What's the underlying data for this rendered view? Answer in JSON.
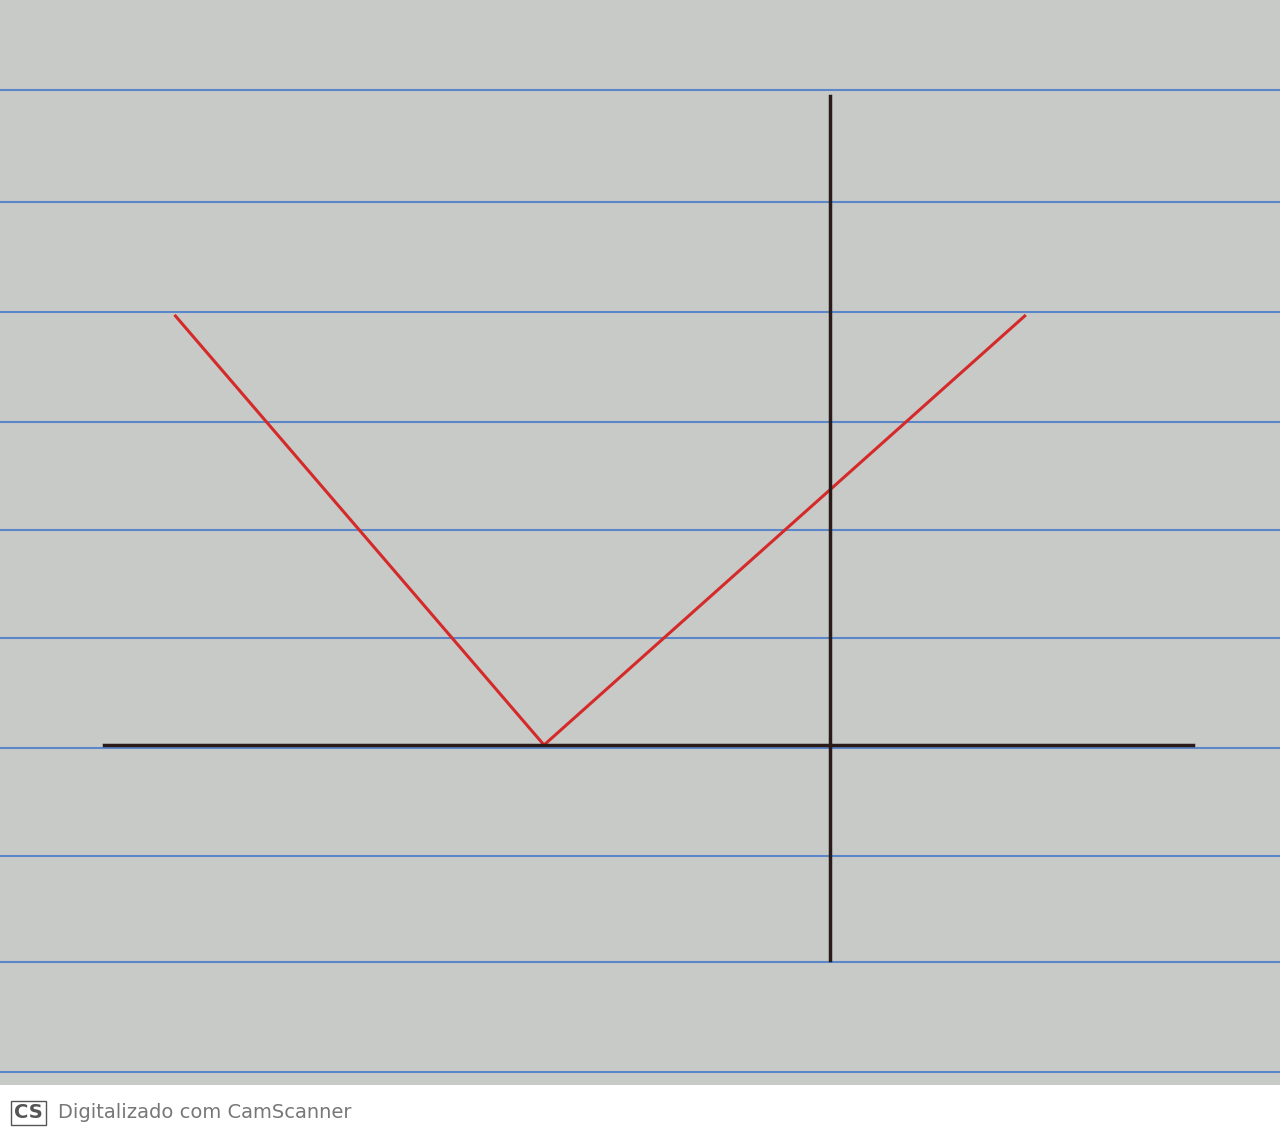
{
  "chart_data": {
    "type": "line",
    "x": [
      -5.95,
      -2.6,
      1.77
    ],
    "values": [
      3.9,
      0,
      3.9
    ],
    "color": "#d42a2a",
    "xlim": [
      -6.6,
      3.3
    ],
    "ylim": [
      -1.95,
      5.9
    ],
    "xticks": [],
    "yticks": [],
    "tick_labels": false,
    "grid": false,
    "annotations": [
      "CS",
      "Digitalizado com CamScanner"
    ]
  }
}
